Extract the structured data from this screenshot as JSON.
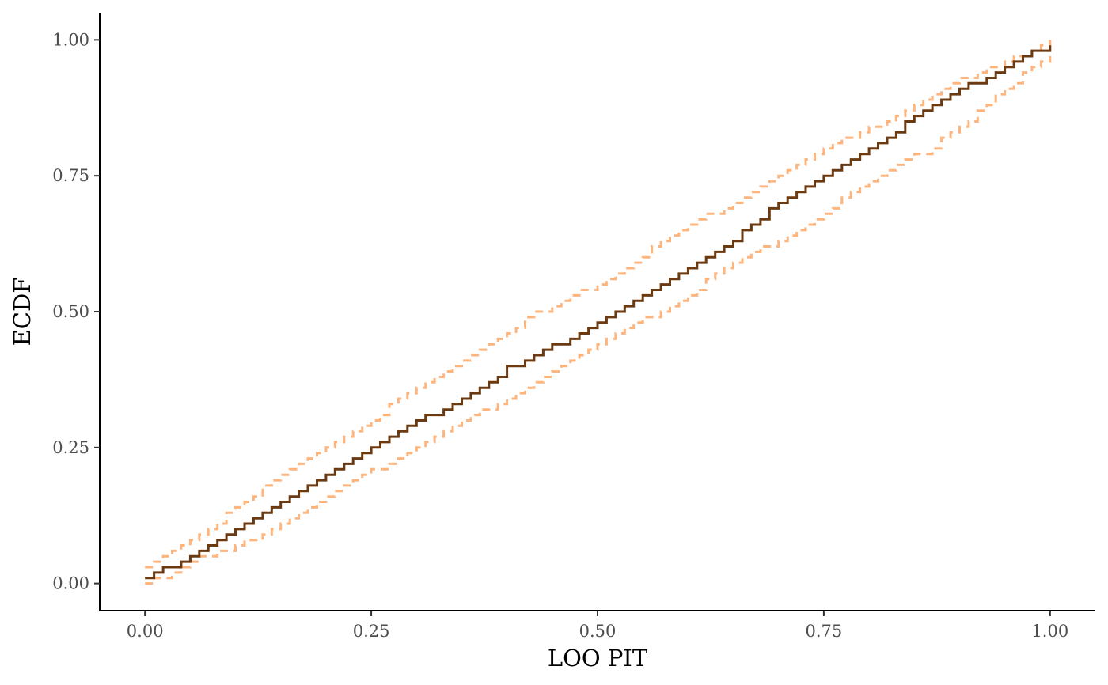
{
  "chart_data": {
    "type": "line",
    "title": "",
    "xlabel": "LOO PIT",
    "ylabel": "ECDF",
    "xlim": [
      -0.05,
      1.05
    ],
    "ylim": [
      -0.05,
      1.05
    ],
    "x_ticks": [
      0,
      0.25,
      0.5,
      0.75,
      1
    ],
    "x_tick_labels": [
      "0.00",
      "0.25",
      "0.50",
      "0.75",
      "1.00"
    ],
    "y_ticks": [
      0,
      0.25,
      0.5,
      0.75,
      1
    ],
    "y_tick_labels": [
      "0.00",
      "0.25",
      "0.50",
      "0.75",
      "1.00"
    ],
    "grid": false,
    "legend": "none",
    "step_width": 0.01,
    "series": [
      {
        "role": "ecdf",
        "color": "#6b3a10",
        "style": "solid",
        "x": [
          0,
          0.1,
          0.2,
          0.3,
          0.4,
          0.5,
          0.6,
          0.7,
          0.8,
          0.9,
          1.0
        ],
        "y": [
          0.012,
          0.095,
          0.205,
          0.298,
          0.392,
          0.48,
          0.578,
          0.695,
          0.8,
          0.91,
          0.99
        ]
      },
      {
        "role": "upper-band",
        "color": "#fdb57d",
        "style": "dashed",
        "x": [
          0,
          0.1,
          0.2,
          0.3,
          0.4,
          0.5,
          0.6,
          0.7,
          0.8,
          0.9,
          1.0
        ],
        "y": [
          0.022,
          0.14,
          0.25,
          0.355,
          0.465,
          0.555,
          0.655,
          0.755,
          0.84,
          0.925,
          1.0
        ]
      },
      {
        "role": "lower-band",
        "color": "#fdb57d",
        "style": "dashed",
        "x": [
          0,
          0.1,
          0.2,
          0.3,
          0.4,
          0.5,
          0.6,
          0.7,
          0.8,
          0.9,
          1.0
        ],
        "y": [
          0.0,
          0.07,
          0.16,
          0.255,
          0.34,
          0.44,
          0.535,
          0.635,
          0.735,
          0.84,
          0.975
        ]
      }
    ]
  }
}
